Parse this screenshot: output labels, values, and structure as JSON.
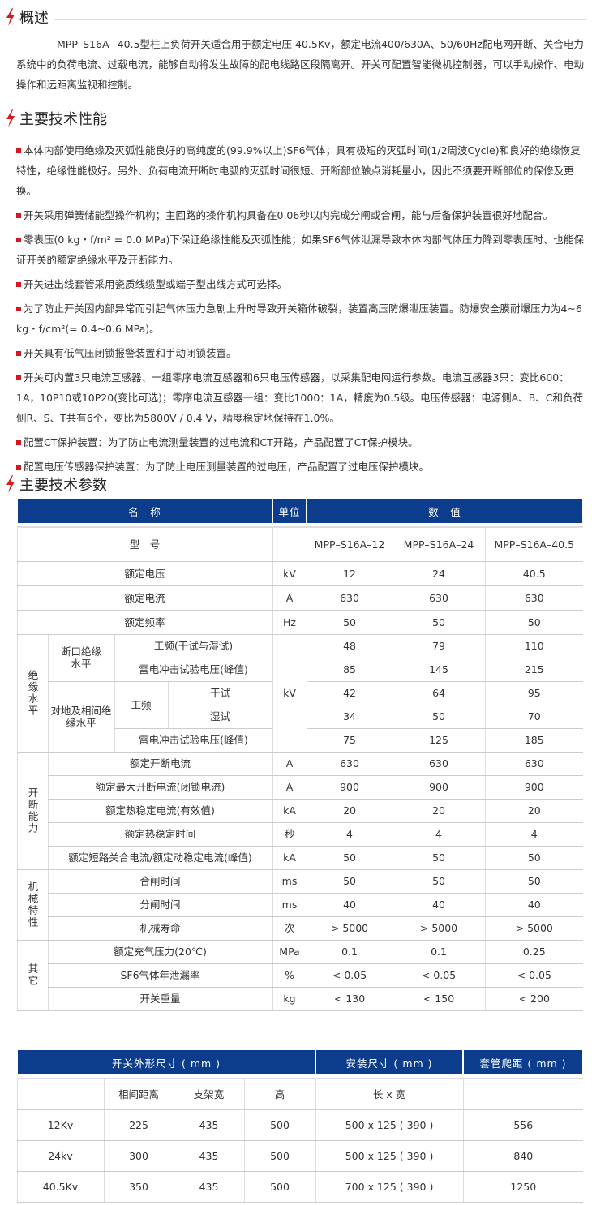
{
  "colors": {
    "accent": "#d8161b",
    "header_bg": "#0c3c8c"
  },
  "overview": {
    "title": "概述",
    "icon": "lightning-bolt-icon",
    "text": "MPP–S16A– 40.5型柱上负荷开关适合用于额定电压 40.5Kv，额定电流400/630A、50/60Hz配电网开断、关合电力系统中的负荷电流、过载电流，能够自动将发生故障的配电线路区段隔离开。开关可配置智能微机控制器，可以手动操作、电动操作和远距离监视和控制。"
  },
  "performance": {
    "title": "主要技术性能",
    "icon": "lightning-bolt-icon",
    "items": [
      "本体内部使用绝缘及灭弧性能良好的高纯度的(99.9%以上)SF6气体；具有极短的灭弧时间(1/2周波Cycle)和良好的绝缘恢复特性，绝缘性能极好。另外、负荷电流开断时电弧的灭弧时间很短、开断部位触点消耗量小，因此不须要开断部位的保修及更换。",
      "开关采用弹簧储能型操作机构；主回路的操作机构具备在0.06秒以内完成分闸或合闸，能与后备保护装置很好地配合。",
      "零表压(0 kg・f/m² = 0.0 MPa)下保证绝缘性能及灭弧性能；如果SF6气体泄漏导致本体内部气体压力降到零表压时、也能保证开关的额定绝缘水平及开断能力。",
      "开关进出线套管采用瓷质线缆型或端子型出线方式可选择。",
      "为了防止开关因内部异常而引起气体压力急剧上升时导致开关箱体破裂，装置高压防爆泄压装置。防爆安全膜耐爆压力为4~6 kg・f/cm²(= 0.4~0.6 MPa)。",
      "开关具有低气压闭锁报警装置和手动闭锁装置。",
      "开关可内置3只电流互感器、一组零序电流互感器和6只电压传感器，以采集配电网运行参数。电流互感器3只：变比600：1A，10P10或10P20(变比可选)；零序电流互感器一组：变比1000：1A，精度为0.5级。电压传感器：电源侧A、B、C和负荷侧R、S、T共有6个，变比为5800V / 0.4 V，精度稳定地保持在1.0%。",
      "配置CT保护装置：为了防止电流测量装置的过电流和CT开路，产品配置了CT保护模块。",
      "配置电压传感器保护装置：为了防止电压测量装置的过电压，产品配置了过电压保护模块。"
    ]
  },
  "params": {
    "title": "主要技术参数",
    "icon": "lightning-bolt-icon",
    "headers": [
      "名　称",
      "单位",
      "数　值"
    ],
    "model_label": "型　号",
    "models": [
      "MPP–S16A–12",
      "MPP–S16A–24",
      "MPP–S16A–40.5"
    ],
    "basic": [
      {
        "name": "额定电压",
        "unit": "kV",
        "values": [
          "12",
          "24",
          "40.5"
        ]
      },
      {
        "name": "额定电流",
        "unit": "A",
        "values": [
          "630",
          "630",
          "630"
        ]
      },
      {
        "name": "额定频率",
        "unit": "Hz",
        "values": [
          "50",
          "50",
          "50"
        ]
      }
    ],
    "insulation": {
      "group": "绝缘水平",
      "unit": "kV",
      "break_label": "断口绝缘水平",
      "ground_label": "对地及相间绝缘水平",
      "pf_label": "工频",
      "rows": [
        {
          "name": "工频(干试与湿试)",
          "values": [
            "48",
            "79",
            "110"
          ]
        },
        {
          "name": "雷电冲击试验电压(峰值)",
          "values": [
            "85",
            "145",
            "215"
          ]
        },
        {
          "name": "干试",
          "values": [
            "42",
            "64",
            "95"
          ]
        },
        {
          "name": "湿试",
          "values": [
            "34",
            "50",
            "70"
          ]
        },
        {
          "name": "雷电冲击试验电压(峰值)",
          "values": [
            "75",
            "125",
            "185"
          ]
        }
      ]
    },
    "groups": [
      {
        "group": "开断能力",
        "rows": [
          {
            "name": "额定开断电流",
            "unit": "A",
            "values": [
              "630",
              "630",
              "630"
            ]
          },
          {
            "name": "额定最大开断电流(闭锁电流)",
            "unit": "A",
            "values": [
              "900",
              "900",
              "900"
            ]
          },
          {
            "name": "额定热稳定电流(有效值)",
            "unit": "kA",
            "values": [
              "20",
              "20",
              "20"
            ]
          },
          {
            "name": "额定热稳定时间",
            "unit": "秒",
            "values": [
              "4",
              "4",
              "4"
            ]
          },
          {
            "name": "额定短路关合电流/额定动稳定电流(峰值)",
            "unit": "kA",
            "values": [
              "50",
              "50",
              "50"
            ]
          }
        ]
      },
      {
        "group": "机械特性",
        "rows": [
          {
            "name": "合闸时间",
            "unit": "ms",
            "values": [
              "50",
              "50",
              "50"
            ]
          },
          {
            "name": "分闸时间",
            "unit": "ms",
            "values": [
              "40",
              "40",
              "40"
            ]
          },
          {
            "name": "机械寿命",
            "unit": "次",
            "values": [
              "> 5000",
              "> 5000",
              "> 5000"
            ]
          }
        ]
      },
      {
        "group": "其它",
        "rows": [
          {
            "name": "额定充气压力(20℃)",
            "unit": "MPa",
            "values": [
              "0.1",
              "0.1",
              "0.25"
            ]
          },
          {
            "name": "SF6气体年泄漏率",
            "unit": "%",
            "values": [
              "< 0.05",
              "< 0.05",
              "< 0.05"
            ]
          },
          {
            "name": "开关重量",
            "unit": "kg",
            "values": [
              "< 130",
              "< 150",
              "< 200"
            ]
          }
        ]
      }
    ]
  },
  "dimensions": {
    "headers": [
      "开关外形尺寸 ( mm )",
      "安装尺寸 ( mm )",
      "套管爬距 ( mm )"
    ],
    "subheaders": [
      "",
      "相间距离",
      "支架宽",
      "高",
      "长 x 宽",
      ""
    ],
    "rows": [
      [
        "12Kv",
        "225",
        "435",
        "500",
        "500 x 125 ( 390 )",
        "556"
      ],
      [
        "24kv",
        "300",
        "435",
        "500",
        "500 x 125 ( 390 )",
        "840"
      ],
      [
        "40.5Kv",
        "350",
        "435",
        "500",
        "700 x 125 ( 390 )",
        "1250"
      ]
    ]
  }
}
